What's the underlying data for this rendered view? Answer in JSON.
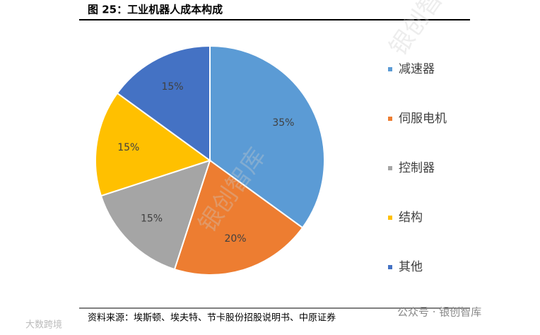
{
  "chart_data": {
    "type": "pie",
    "title": "图 25：工业机器人成本构成",
    "categories": [
      "减速器",
      "伺服电机",
      "控制器",
      "结构",
      "其他"
    ],
    "values": [
      35,
      20,
      15,
      15,
      15
    ],
    "value_labels": [
      "35%",
      "20%",
      "15%",
      "15%",
      "15%"
    ],
    "colors": [
      "#5b9bd5",
      "#ed7d31",
      "#a5a5a5",
      "#ffc000",
      "#4472c4"
    ],
    "legend": "right",
    "source": "资料来源：埃斯顿、埃夫特、节卡股份招股说明书、中原证券"
  },
  "watermarks": [
    "银创智库",
    "公众号 · 银创智库",
    "大数跨境"
  ]
}
